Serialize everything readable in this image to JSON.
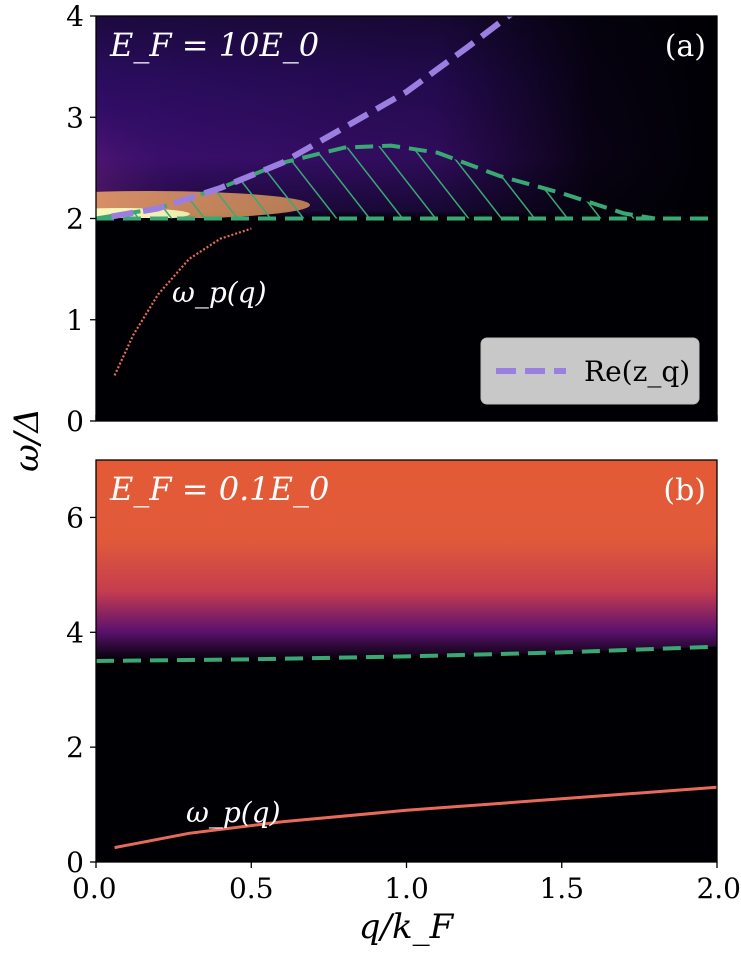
{
  "figure": {
    "shared_ylabel": "ω/Δ",
    "shared_xlabel": "q/k_F"
  },
  "chart_data": [
    {
      "type": "heatmap",
      "panel_tag": "(a)",
      "annotation": "E_F = 10E_0",
      "curve_label": "ω_p(q)",
      "xlim": [
        0,
        2.0
      ],
      "ylim": [
        0,
        4
      ],
      "yticks": [
        0,
        1,
        2,
        3,
        4
      ],
      "xticks_labels_shown": false,
      "legend": {
        "entries": [
          "Re(z_q)"
        ],
        "placement": "lower-right"
      },
      "colors": {
        "re_zq": "#9b7fe0",
        "continuum": "#3aa874",
        "background": "#000004"
      },
      "plasmon": {
        "x": [
          0.06,
          0.12,
          0.2,
          0.3,
          0.4,
          0.5
        ],
        "y": [
          0.45,
          0.85,
          1.25,
          1.6,
          1.8,
          1.9
        ]
      },
      "re_zq": {
        "x": [
          0.05,
          0.2,
          0.4,
          0.6,
          0.8,
          1.0,
          1.2,
          1.35
        ],
        "y": [
          2.02,
          2.1,
          2.3,
          2.55,
          2.9,
          3.25,
          3.7,
          4.05
        ]
      },
      "continuum_upper": {
        "x": [
          0.0,
          0.2,
          0.4,
          0.6,
          0.8,
          0.95,
          1.1,
          1.3,
          1.5,
          1.7,
          1.8
        ],
        "y": [
          2.0,
          2.1,
          2.3,
          2.55,
          2.7,
          2.72,
          2.65,
          2.42,
          2.25,
          2.05,
          2.0
        ]
      },
      "continuum_lower": {
        "x": [
          0.0,
          2.0
        ],
        "y": [
          2.0,
          2.0
        ]
      }
    },
    {
      "type": "heatmap",
      "panel_tag": "(b)",
      "annotation": "E_F = 0.1E_0",
      "curve_label": "ω_p(q)",
      "xlim": [
        0,
        2.0
      ],
      "ylim": [
        0,
        7
      ],
      "yticks": [
        0,
        2,
        4,
        6
      ],
      "xticks": [
        0.0,
        0.5,
        1.0,
        1.5,
        2.0
      ],
      "xtick_labels": [
        "0.0",
        "0.5",
        "1.0",
        "1.5",
        "2.0"
      ],
      "colors": {
        "continuum": "#3aa874",
        "fill": "#e45a36",
        "background": "#000004"
      },
      "continuum_edge": {
        "x": [
          0.0,
          0.5,
          1.0,
          1.5,
          2.0
        ],
        "y": [
          3.5,
          3.53,
          3.58,
          3.65,
          3.75
        ]
      },
      "plasmon": {
        "x": [
          0.06,
          0.3,
          0.6,
          1.0,
          1.5,
          2.0
        ],
        "y": [
          0.25,
          0.5,
          0.7,
          0.9,
          1.1,
          1.3
        ]
      }
    }
  ]
}
